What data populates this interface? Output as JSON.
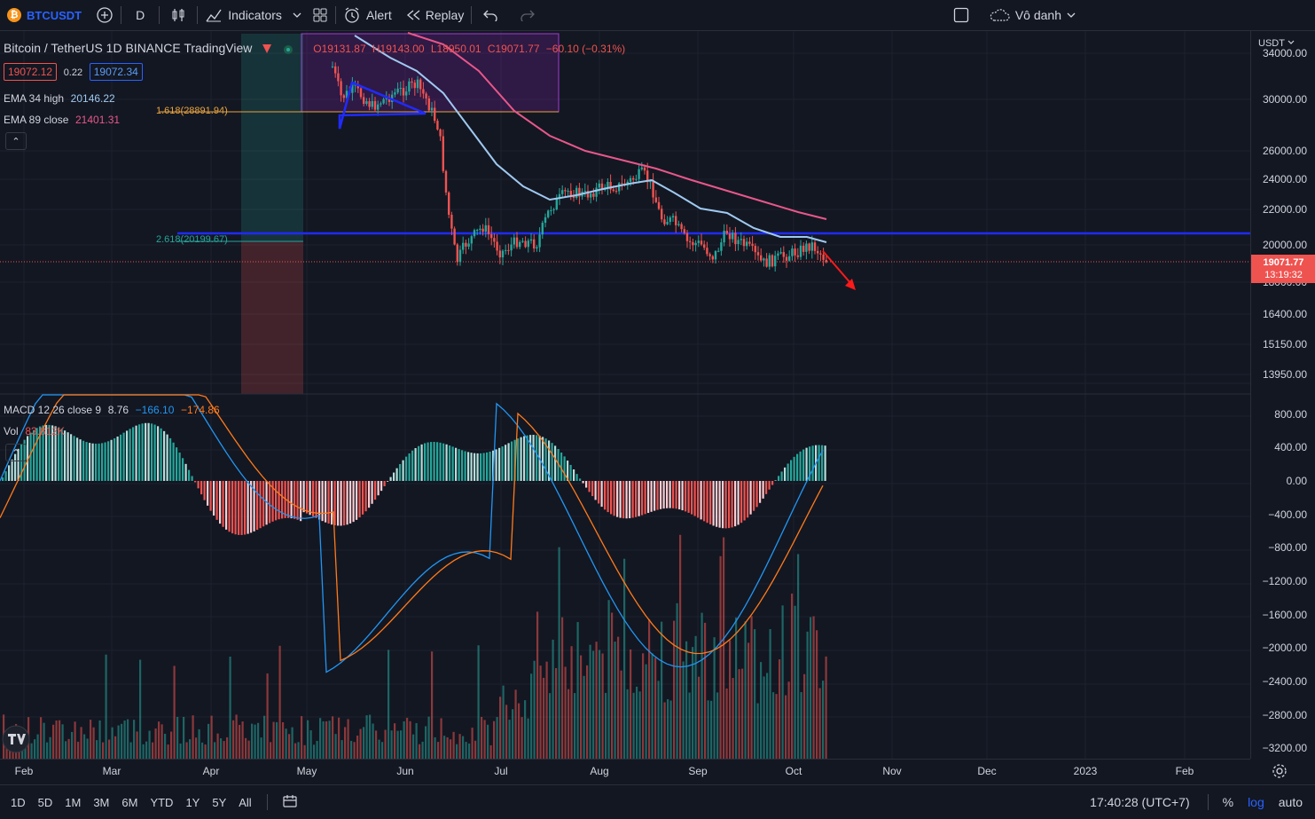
{
  "toolbar": {
    "symbol": "BTCUSDT",
    "interval": "D",
    "indicators": "Indicators",
    "alert": "Alert",
    "replay": "Replay",
    "layout_name": "Vô danh"
  },
  "legend": {
    "title": "Bitcoin / TetherUS  1D  BINANCE  TradingView",
    "open": "O19131.87",
    "high": "H19143.00",
    "low": "L18950.01",
    "close": "C19071.77",
    "change": "−60.10 (−0.31%)",
    "bid": "19072.12",
    "spread": "0.22",
    "ask": "19072.34",
    "ema34_label": "EMA 34 high",
    "ema34_value": "20146.22",
    "ema89_label": "EMA 89 close",
    "ema89_value": "21401.31",
    "fib_1618": "1.618(28891.94)",
    "fib_2618": "2.618(20199.67)",
    "collapse": "⌃"
  },
  "macd": {
    "label": "MACD  12  26  close  9",
    "hist": "8.76",
    "macd": "−166.10",
    "signal": "−174.86",
    "vol_label": "Vol",
    "vol_value": "83.812K"
  },
  "price_axis": {
    "currency": "USDT",
    "current_price": "19071.77",
    "countdown": "13:19:32",
    "labels": [
      "34000.00",
      "30000.00",
      "26000.00",
      "24000.00",
      "22000.00",
      "20000.00",
      "18000.00",
      "16400.00",
      "15150.00",
      "13950.00"
    ],
    "macd_labels": [
      "800.00",
      "400.00",
      "0.00",
      "−400.00",
      "−800.00",
      "−1200.00",
      "−1600.00",
      "−2000.00",
      "−2400.00",
      "−2800.00",
      "−3200.00"
    ]
  },
  "time_axis": [
    "Feb",
    "Mar",
    "Apr",
    "May",
    "Jun",
    "Jul",
    "Aug",
    "Sep",
    "Oct",
    "Nov",
    "Dec",
    "2023",
    "Feb"
  ],
  "bottombar": {
    "ranges": [
      "1D",
      "5D",
      "1M",
      "3M",
      "6M",
      "YTD",
      "1Y",
      "5Y",
      "All"
    ],
    "clock": "17:40:28 (UTC+7)",
    "percent": "%",
    "log": "log",
    "auto": "auto"
  },
  "colors": {
    "background": "#131722",
    "up": "#26a69a",
    "down": "#ef5350",
    "ema34": "#9fc9f0",
    "ema89": "#e8578a",
    "support": "#1f2bff",
    "accent": "#2962ff"
  }
}
